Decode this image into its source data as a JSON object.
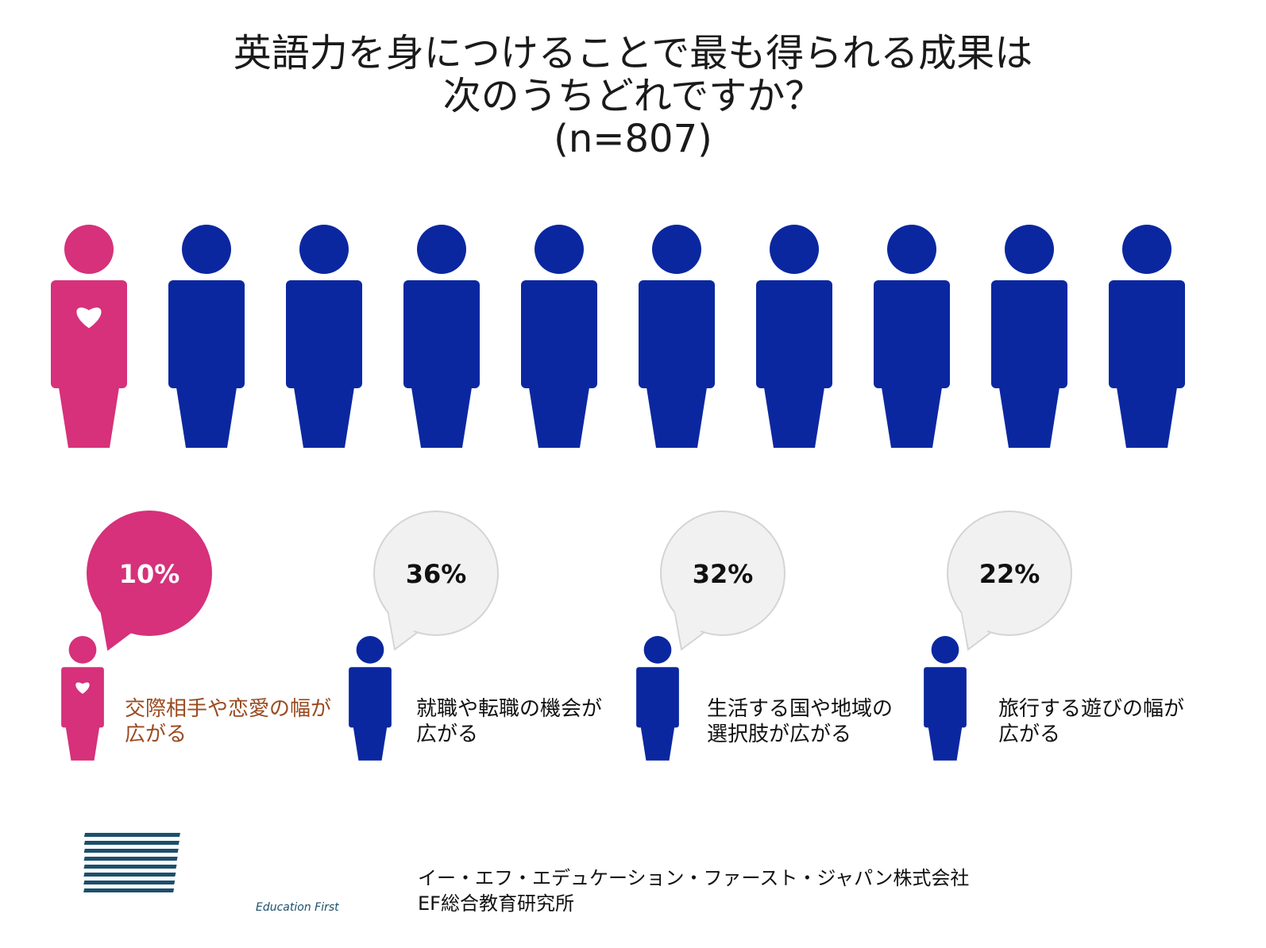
{
  "title": {
    "line1": "英語力を身につけることで最も得られる成果は",
    "line2": "次のうちどれですか？",
    "line3": "(n=807)"
  },
  "colors": {
    "accent": "#d6317a",
    "people": "#0b27a0",
    "bubble_grey": "#f1f1f1",
    "label_accent": "#9a4a1f"
  },
  "icons": {
    "heart": "heart-icon",
    "person": "person-icon"
  },
  "chart_data": {
    "type": "pictograph",
    "unit_note": "",
    "categories": [
      "交際相手や恋愛の幅が広がる",
      "就職や転職の機会が広がる",
      "生活する国や地域の選択肢が広がる",
      "旅行する遊びの幅が広がる"
    ],
    "values": [
      10,
      36,
      32,
      22
    ],
    "value_labels": [
      "10%",
      "36%",
      "32%",
      "22%"
    ],
    "pictogram": {
      "total_figures": 10,
      "highlighted_figures": 1
    },
    "label_lines": [
      [
        "交際相手や恋愛の幅が",
        "広がる"
      ],
      [
        "就職や転職の機会が",
        "広がる"
      ],
      [
        "生活する国や地域の",
        "選択肢が広がる"
      ],
      [
        "旅行する遊びの幅が",
        "広がる"
      ]
    ]
  },
  "footer": {
    "company": "イー・エフ・エデュケーション・ファースト・ジャパン株式会社",
    "institute": "EF総合教育研究所",
    "logo_caption": "Education First"
  }
}
